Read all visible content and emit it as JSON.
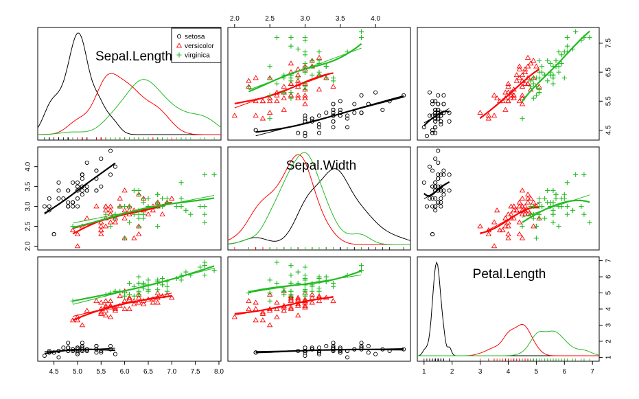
{
  "chart_data": {
    "type": "scatter",
    "variables": [
      "Sepal.Length",
      "Sepal.Width",
      "Petal.Length"
    ],
    "groups": [
      {
        "name": "setosa",
        "color": "#000000",
        "marker": "circle"
      },
      {
        "name": "versicolor",
        "color": "#ff0000",
        "marker": "triangle"
      },
      {
        "name": "virginica",
        "color": "#22bb22",
        "marker": "plus"
      }
    ],
    "legend": {
      "placement": "top-right of first diagonal panel",
      "entries": [
        "setosa",
        "versicolor",
        "virginica"
      ]
    },
    "axes": {
      "Sepal.Length": {
        "range": [
          4.3,
          7.9
        ],
        "ticks": [
          "4.5",
          "5.0",
          "5.5",
          "6.0",
          "6.5",
          "7.0",
          "7.5",
          "8.0"
        ],
        "tick_values": [
          4.5,
          5.0,
          5.5,
          6.0,
          6.5,
          7.0,
          7.5,
          8.0
        ],
        "right_ticks": [
          "4.5",
          "5.5",
          "6.5",
          "7.5"
        ],
        "right_tick_values": [
          4.5,
          5.5,
          6.5,
          7.5
        ]
      },
      "Sepal.Width": {
        "range": [
          2.0,
          4.4
        ],
        "ticks": [
          "2.0",
          "2.5",
          "3.0",
          "3.5",
          "4.0"
        ],
        "tick_values": [
          2.0,
          2.5,
          3.0,
          3.5,
          4.0
        ]
      },
      "Petal.Length": {
        "range": [
          1.0,
          7.0
        ],
        "ticks": [
          "1",
          "2",
          "3",
          "4",
          "5",
          "6",
          "7"
        ],
        "tick_values": [
          1,
          2,
          3,
          4,
          5,
          6,
          7
        ]
      }
    },
    "points": {
      "setosa": {
        "Sepal.Length": [
          4.5,
          4.9,
          5.0,
          5.1,
          4.9,
          5.0,
          5.2,
          5.4,
          4.6,
          5.0,
          4.4,
          4.9,
          5.4,
          4.8,
          4.8,
          4.3,
          5.8,
          5.7,
          5.4,
          5.1,
          5.7,
          5.1,
          5.4,
          5.1,
          4.6,
          5.1,
          4.8,
          5.0,
          5.0,
          5.2,
          5.2,
          4.7,
          4.8,
          5.4,
          5.2,
          5.5,
          4.9,
          5.0,
          5.5,
          4.9,
          4.4,
          5.1,
          5.0,
          4.5,
          4.4,
          5.0,
          5.1,
          4.8,
          5.1,
          4.6
        ],
        "Sepal.Width": [
          2.3,
          3.0,
          3.6,
          3.5,
          3.1,
          3.4,
          3.4,
          3.9,
          3.4,
          3.4,
          2.9,
          3.1,
          3.7,
          3.4,
          3.0,
          3.0,
          4.0,
          4.4,
          3.9,
          3.5,
          3.8,
          3.8,
          3.4,
          3.7,
          3.6,
          3.3,
          3.4,
          3.0,
          3.4,
          3.5,
          3.4,
          3.2,
          3.1,
          3.4,
          4.1,
          4.2,
          3.1,
          3.2,
          3.5,
          3.6,
          3.0,
          3.4,
          3.5,
          2.3,
          3.2,
          3.5,
          3.8,
          3.0,
          3.8,
          3.2
        ],
        "Petal.Length": [
          1.3,
          1.4,
          1.4,
          1.4,
          1.5,
          1.5,
          1.4,
          1.7,
          1.4,
          1.5,
          1.4,
          1.5,
          1.5,
          1.6,
          1.4,
          1.1,
          1.2,
          1.5,
          1.3,
          1.4,
          1.7,
          1.5,
          1.7,
          1.5,
          1.0,
          1.7,
          1.9,
          1.6,
          1.6,
          1.5,
          1.4,
          1.6,
          1.6,
          1.5,
          1.5,
          1.4,
          1.5,
          1.2,
          1.3,
          1.4,
          1.3,
          1.5,
          1.3,
          1.3,
          1.3,
          1.6,
          1.9,
          1.4,
          1.6,
          1.4
        ]
      },
      "versicolor": {
        "Sepal.Length": [
          7.0,
          6.4,
          6.9,
          5.5,
          6.5,
          5.7,
          6.3,
          4.9,
          6.6,
          5.2,
          5.0,
          5.9,
          6.0,
          6.1,
          5.6,
          6.7,
          5.6,
          5.8,
          6.2,
          5.6,
          5.9,
          6.1,
          6.3,
          6.1,
          6.4,
          6.6,
          6.8,
          6.7,
          6.0,
          5.7,
          5.5,
          5.5,
          5.8,
          6.0,
          5.4,
          6.0,
          6.7,
          6.3,
          5.6,
          5.5,
          5.5,
          6.1,
          5.8,
          5.0,
          5.6,
          5.7,
          5.7,
          6.2,
          5.1,
          5.7
        ],
        "Sepal.Width": [
          3.2,
          3.2,
          3.1,
          2.3,
          2.8,
          2.8,
          3.3,
          2.4,
          2.9,
          2.7,
          2.0,
          3.0,
          2.2,
          2.9,
          2.9,
          3.1,
          3.0,
          2.7,
          2.2,
          2.5,
          3.2,
          2.8,
          2.5,
          2.8,
          2.9,
          3.0,
          2.8,
          3.0,
          2.9,
          2.6,
          2.4,
          2.4,
          2.7,
          2.7,
          3.0,
          3.4,
          3.1,
          2.3,
          3.0,
          2.5,
          2.6,
          3.0,
          2.6,
          2.3,
          2.7,
          3.0,
          2.9,
          2.9,
          2.5,
          2.8
        ],
        "Petal.Length": [
          4.7,
          4.5,
          4.9,
          4.0,
          4.6,
          4.5,
          4.7,
          3.3,
          4.6,
          3.9,
          3.5,
          4.2,
          4.0,
          4.7,
          3.6,
          4.4,
          4.5,
          4.1,
          4.5,
          3.9,
          4.8,
          4.0,
          4.9,
          4.7,
          4.3,
          4.4,
          4.8,
          5.0,
          4.5,
          3.5,
          3.8,
          3.7,
          3.9,
          5.1,
          4.5,
          4.5,
          4.7,
          4.4,
          4.1,
          4.0,
          4.4,
          4.6,
          4.0,
          3.3,
          4.2,
          4.2,
          4.2,
          4.3,
          3.0,
          4.1
        ]
      },
      "virginica": {
        "Sepal.Length": [
          6.3,
          5.8,
          7.1,
          6.3,
          6.5,
          7.6,
          4.9,
          7.3,
          6.7,
          7.2,
          6.5,
          6.4,
          6.8,
          5.7,
          5.8,
          6.4,
          6.5,
          7.7,
          7.7,
          6.0,
          6.9,
          5.6,
          7.7,
          6.3,
          6.7,
          7.2,
          6.2,
          6.1,
          6.4,
          7.2,
          7.4,
          7.9,
          6.4,
          6.3,
          6.1,
          7.7,
          6.3,
          6.4,
          6.0,
          6.9,
          6.7,
          6.9,
          5.8,
          6.8,
          6.7,
          6.7,
          6.3,
          6.5,
          6.2,
          5.9
        ],
        "Sepal.Width": [
          3.3,
          2.7,
          3.0,
          2.9,
          3.0,
          3.0,
          2.5,
          2.9,
          2.5,
          3.6,
          3.2,
          2.7,
          3.0,
          2.5,
          2.8,
          3.2,
          3.0,
          3.8,
          2.6,
          2.2,
          3.2,
          2.8,
          2.8,
          2.7,
          3.3,
          3.2,
          2.8,
          3.0,
          2.8,
          3.0,
          2.8,
          3.8,
          2.8,
          2.8,
          2.6,
          3.0,
          3.4,
          3.1,
          3.0,
          3.1,
          3.1,
          3.1,
          2.7,
          3.2,
          3.3,
          3.0,
          2.5,
          3.0,
          3.4,
          3.0
        ],
        "Petal.Length": [
          6.0,
          5.1,
          5.9,
          5.6,
          5.8,
          6.6,
          4.5,
          6.3,
          5.8,
          6.1,
          5.1,
          5.3,
          5.5,
          5.0,
          5.1,
          5.3,
          5.5,
          6.7,
          6.9,
          5.0,
          5.7,
          4.9,
          6.7,
          4.9,
          5.7,
          6.0,
          4.8,
          4.9,
          5.6,
          5.8,
          6.1,
          6.4,
          5.6,
          5.1,
          5.6,
          6.1,
          5.6,
          5.5,
          4.8,
          5.4,
          5.6,
          5.1,
          5.1,
          5.9,
          5.7,
          5.2,
          5.0,
          5.2,
          5.4,
          5.1
        ]
      }
    },
    "grid": false,
    "diagonal": "density"
  }
}
